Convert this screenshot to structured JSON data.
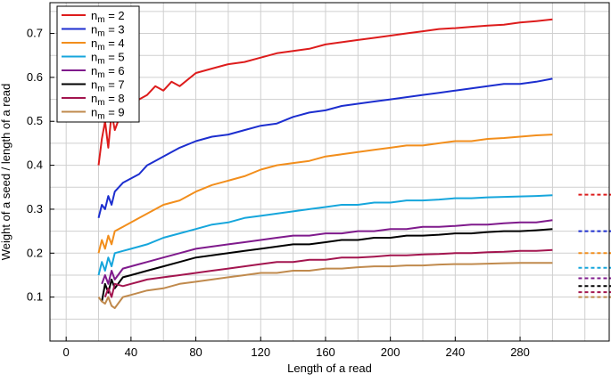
{
  "chart_data": {
    "type": "line",
    "xlabel": "Length of a read",
    "ylabel": "Weight of a seed / length of a read",
    "xlim": [
      -10,
      335
    ],
    "ylim": [
      0.0,
      0.77
    ],
    "xticks": [
      0,
      40,
      80,
      120,
      160,
      200,
      240,
      280
    ],
    "yticks": [
      0.1,
      0.2,
      0.3,
      0.4,
      0.5,
      0.6,
      0.7
    ],
    "ytick_labels": [
      "0.1",
      "0.2",
      "0.3",
      "0.4",
      "0.5",
      "0.6",
      "0.7"
    ],
    "grid": true,
    "legend_position": "top-left",
    "series": [
      {
        "name": "n",
        "sub": "m",
        "value": "2",
        "color": "#dd1c1c",
        "x": [
          20,
          22,
          24,
          26,
          28,
          30,
          35,
          40,
          45,
          50,
          55,
          60,
          65,
          70,
          80,
          90,
          100,
          110,
          120,
          130,
          140,
          150,
          160,
          170,
          180,
          190,
          200,
          210,
          220,
          230,
          240,
          250,
          260,
          270,
          280,
          290,
          300
        ],
        "y": [
          0.4,
          0.46,
          0.5,
          0.44,
          0.52,
          0.48,
          0.53,
          0.52,
          0.55,
          0.56,
          0.58,
          0.57,
          0.59,
          0.58,
          0.61,
          0.62,
          0.63,
          0.635,
          0.645,
          0.655,
          0.66,
          0.665,
          0.675,
          0.68,
          0.685,
          0.69,
          0.695,
          0.7,
          0.705,
          0.71,
          0.712,
          0.715,
          0.718,
          0.72,
          0.725,
          0.728,
          0.732
        ]
      },
      {
        "name": "n",
        "sub": "m",
        "value": "3",
        "color": "#1c2ecf",
        "x": [
          20,
          22,
          24,
          26,
          28,
          30,
          35,
          40,
          45,
          50,
          55,
          60,
          70,
          80,
          90,
          100,
          110,
          120,
          130,
          140,
          150,
          160,
          170,
          180,
          190,
          200,
          210,
          220,
          230,
          240,
          250,
          260,
          270,
          280,
          290,
          300
        ],
        "y": [
          0.28,
          0.31,
          0.3,
          0.33,
          0.31,
          0.34,
          0.36,
          0.37,
          0.38,
          0.4,
          0.41,
          0.42,
          0.44,
          0.455,
          0.465,
          0.47,
          0.48,
          0.49,
          0.495,
          0.51,
          0.52,
          0.525,
          0.535,
          0.54,
          0.545,
          0.55,
          0.555,
          0.56,
          0.565,
          0.57,
          0.575,
          0.58,
          0.585,
          0.585,
          0.59,
          0.597
        ]
      },
      {
        "name": "n",
        "sub": "m",
        "value": "4",
        "color": "#f28e1c",
        "x": [
          20,
          22,
          24,
          26,
          28,
          30,
          35,
          40,
          45,
          50,
          60,
          70,
          80,
          90,
          100,
          110,
          120,
          130,
          140,
          150,
          160,
          170,
          180,
          190,
          200,
          210,
          220,
          230,
          240,
          250,
          260,
          270,
          280,
          290,
          300
        ],
        "y": [
          0.2,
          0.23,
          0.21,
          0.24,
          0.22,
          0.25,
          0.26,
          0.27,
          0.28,
          0.29,
          0.31,
          0.32,
          0.34,
          0.355,
          0.365,
          0.375,
          0.39,
          0.4,
          0.405,
          0.41,
          0.42,
          0.425,
          0.43,
          0.435,
          0.44,
          0.445,
          0.445,
          0.45,
          0.455,
          0.455,
          0.46,
          0.462,
          0.465,
          0.468,
          0.47
        ]
      },
      {
        "name": "n",
        "sub": "m",
        "value": "5",
        "color": "#16a6dc",
        "x": [
          20,
          22,
          24,
          26,
          28,
          30,
          35,
          40,
          45,
          50,
          60,
          70,
          80,
          90,
          100,
          110,
          120,
          130,
          140,
          150,
          160,
          170,
          180,
          190,
          200,
          210,
          220,
          230,
          240,
          250,
          260,
          270,
          280,
          290,
          300
        ],
        "y": [
          0.15,
          0.18,
          0.16,
          0.19,
          0.17,
          0.2,
          0.205,
          0.21,
          0.215,
          0.22,
          0.235,
          0.245,
          0.255,
          0.265,
          0.27,
          0.28,
          0.285,
          0.29,
          0.295,
          0.3,
          0.305,
          0.31,
          0.31,
          0.315,
          0.315,
          0.32,
          0.32,
          0.322,
          0.325,
          0.325,
          0.327,
          0.328,
          0.329,
          0.33,
          0.332
        ]
      },
      {
        "name": "n",
        "sub": "m",
        "value": "6",
        "color": "#7f1a8c",
        "x": [
          22,
          24,
          26,
          28,
          30,
          35,
          40,
          45,
          50,
          60,
          70,
          80,
          90,
          100,
          110,
          120,
          130,
          140,
          150,
          160,
          170,
          180,
          190,
          200,
          210,
          220,
          230,
          240,
          250,
          260,
          270,
          280,
          290,
          300
        ],
        "y": [
          0.13,
          0.15,
          0.13,
          0.16,
          0.14,
          0.165,
          0.17,
          0.175,
          0.18,
          0.19,
          0.2,
          0.21,
          0.215,
          0.22,
          0.225,
          0.23,
          0.235,
          0.24,
          0.24,
          0.245,
          0.245,
          0.25,
          0.25,
          0.255,
          0.255,
          0.26,
          0.26,
          0.262,
          0.265,
          0.265,
          0.268,
          0.27,
          0.27,
          0.275
        ]
      },
      {
        "name": "n",
        "sub": "m",
        "value": "7",
        "color": "#000000",
        "x": [
          22,
          24,
          26,
          28,
          30,
          35,
          40,
          45,
          50,
          60,
          70,
          80,
          90,
          100,
          110,
          120,
          130,
          140,
          150,
          160,
          170,
          180,
          190,
          200,
          210,
          220,
          230,
          240,
          250,
          260,
          270,
          280,
          290,
          300
        ],
        "y": [
          0.09,
          0.13,
          0.11,
          0.14,
          0.12,
          0.145,
          0.15,
          0.155,
          0.16,
          0.17,
          0.18,
          0.19,
          0.195,
          0.2,
          0.205,
          0.21,
          0.215,
          0.22,
          0.22,
          0.225,
          0.23,
          0.23,
          0.235,
          0.235,
          0.24,
          0.24,
          0.242,
          0.245,
          0.245,
          0.248,
          0.25,
          0.25,
          0.252,
          0.255
        ]
      },
      {
        "name": "n",
        "sub": "m",
        "value": "8",
        "color": "#a3154f",
        "x": [
          24,
          26,
          28,
          30,
          35,
          40,
          45,
          50,
          60,
          70,
          80,
          90,
          100,
          110,
          120,
          130,
          140,
          150,
          160,
          170,
          180,
          190,
          200,
          210,
          220,
          230,
          240,
          250,
          260,
          270,
          280,
          290,
          300
        ],
        "y": [
          0.1,
          0.12,
          0.1,
          0.13,
          0.125,
          0.13,
          0.135,
          0.14,
          0.145,
          0.15,
          0.155,
          0.16,
          0.165,
          0.17,
          0.175,
          0.18,
          0.18,
          0.185,
          0.185,
          0.19,
          0.19,
          0.192,
          0.195,
          0.195,
          0.197,
          0.198,
          0.2,
          0.2,
          0.202,
          0.203,
          0.205,
          0.205,
          0.207
        ]
      },
      {
        "name": "n",
        "sub": "m",
        "value": "9",
        "color": "#c08a4d",
        "x": [
          20,
          22,
          24,
          26,
          28,
          30,
          35,
          40,
          45,
          50,
          60,
          70,
          80,
          90,
          100,
          110,
          120,
          130,
          140,
          150,
          160,
          170,
          180,
          190,
          200,
          210,
          220,
          230,
          240,
          250,
          260,
          270,
          280,
          290,
          300
        ],
        "y": [
          0.1,
          0.09,
          0.085,
          0.1,
          0.08,
          0.075,
          0.1,
          0.105,
          0.11,
          0.115,
          0.12,
          0.13,
          0.135,
          0.14,
          0.145,
          0.15,
          0.155,
          0.155,
          0.16,
          0.16,
          0.165,
          0.165,
          0.168,
          0.17,
          0.17,
          0.172,
          0.172,
          0.174,
          0.175,
          0.175,
          0.176,
          0.177,
          0.178,
          0.178,
          0.178
        ]
      }
    ],
    "reference_lines": {
      "x_range": [
        316,
        352
      ],
      "values": [
        0.333,
        0.25,
        0.2,
        0.1667,
        0.1429,
        0.125,
        0.1111,
        0.1
      ],
      "colors": [
        "#dd1c1c",
        "#1c2ecf",
        "#f28e1c",
        "#16a6dc",
        "#7f1a8c",
        "#000000",
        "#a3154f",
        "#c08a4d"
      ],
      "style": "dashed"
    }
  }
}
